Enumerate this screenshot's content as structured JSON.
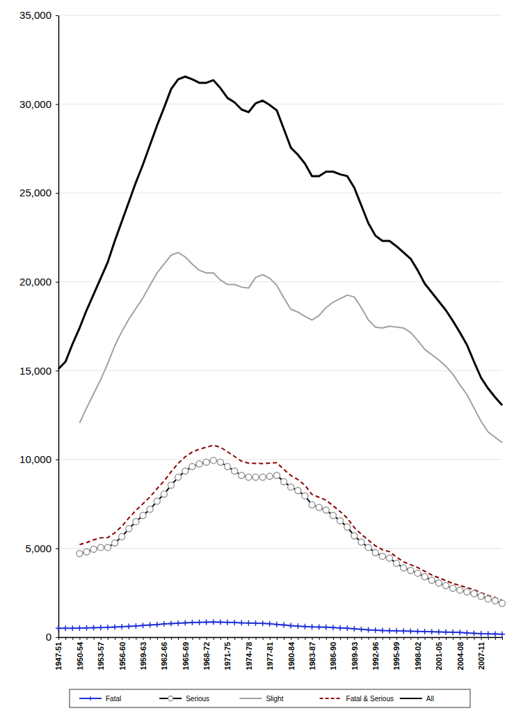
{
  "chart_data": {
    "type": "line",
    "categories": [
      "1947-51",
      null,
      null,
      "1950-54",
      null,
      null,
      "1953-57",
      null,
      null,
      "1956-60",
      null,
      null,
      "1959-63",
      null,
      null,
      "1962-66",
      null,
      null,
      "1965-69",
      null,
      null,
      "1968-72",
      null,
      null,
      "1971-75",
      null,
      null,
      "1974-78",
      null,
      null,
      "1977-81",
      null,
      null,
      "1980-84",
      null,
      null,
      "1983-87",
      null,
      null,
      "1986-90",
      null,
      null,
      "1989-93",
      null,
      null,
      "1992-96",
      null,
      null,
      "1995-99",
      null,
      null,
      "1998-02",
      null,
      null,
      "2001-05",
      null,
      null,
      "2004-08",
      null,
      null,
      "2007-11",
      null,
      null,
      null
    ],
    "series": [
      {
        "name": "Fatal",
        "color": "#1f2fd6",
        "marker": "plus",
        "line_style": "solid",
        "values": [
          500,
          500,
          500,
          510,
          520,
          530,
          540,
          550,
          570,
          590,
          610,
          630,
          660,
          690,
          710,
          740,
          760,
          780,
          800,
          820,
          830,
          840,
          850,
          840,
          830,
          820,
          800,
          790,
          780,
          770,
          750,
          720,
          690,
          650,
          620,
          600,
          580,
          570,
          560,
          540,
          520,
          500,
          470,
          440,
          410,
          390,
          370,
          360,
          350,
          340,
          330,
          320,
          310,
          300,
          290,
          280,
          270,
          260,
          240,
          220,
          200,
          190,
          180,
          170
        ]
      },
      {
        "name": "Serious",
        "color": "#000000",
        "marker": "circle",
        "line_style": "solid",
        "values": [
          null,
          null,
          null,
          4700,
          4800,
          4950,
          5050,
          5050,
          5300,
          5650,
          6100,
          6500,
          6850,
          7200,
          7650,
          8050,
          8550,
          9000,
          9350,
          9600,
          9750,
          9850,
          9950,
          9850,
          9600,
          9350,
          9100,
          9000,
          9000,
          9000,
          9050,
          9100,
          8750,
          8450,
          8250,
          7950,
          7450,
          7300,
          7150,
          6850,
          6550,
          6200,
          5700,
          5350,
          5050,
          4750,
          4550,
          4450,
          4150,
          3900,
          3750,
          3600,
          3400,
          3200,
          3050,
          2900,
          2750,
          2650,
          2550,
          2450,
          2300,
          2150,
          2050,
          1900
        ]
      },
      {
        "name": "Slight",
        "color": "#a0a0a0",
        "marker": "none",
        "line_style": "solid",
        "values": [
          null,
          null,
          null,
          12050,
          12900,
          13700,
          14500,
          15400,
          16400,
          17200,
          17900,
          18500,
          19100,
          19800,
          20500,
          21000,
          21500,
          21650,
          21400,
          21000,
          20650,
          20500,
          20500,
          20100,
          19850,
          19850,
          19700,
          19650,
          20250,
          20400,
          20200,
          19800,
          19100,
          18450,
          18300,
          18050,
          17850,
          18100,
          18550,
          18850,
          19050,
          19250,
          19150,
          18550,
          17850,
          17450,
          17400,
          17500,
          17450,
          17400,
          17150,
          16700,
          16200,
          15900,
          15600,
          15250,
          14800,
          14200,
          13650,
          12900,
          12150,
          11550,
          11250,
          10950
        ]
      },
      {
        "name": "Fatal & Serious",
        "color": "#8b0000",
        "marker": "none",
        "line_style": "dashed",
        "values": [
          null,
          null,
          null,
          5210,
          5320,
          5480,
          5590,
          5600,
          5870,
          6240,
          6710,
          7130,
          7510,
          7890,
          8360,
          8790,
          9310,
          9780,
          10150,
          10420,
          10580,
          10690,
          10800,
          10690,
          10430,
          10170,
          9900,
          9790,
          9780,
          9770,
          9800,
          9820,
          9440,
          9100,
          8870,
          8550,
          8030,
          7870,
          7710,
          7390,
          7070,
          6700,
          6170,
          5790,
          5460,
          5140,
          4920,
          4810,
          4500,
          4240,
          4080,
          3920,
          3710,
          3500,
          3340,
          3180,
          3020,
          2910,
          2790,
          2670,
          2500,
          2340,
          2230,
          2070
        ]
      },
      {
        "name": "All",
        "color": "#000000",
        "marker": "none",
        "line_style": "solid",
        "values": [
          15100,
          15500,
          16500,
          17400,
          18400,
          19300,
          20200,
          21100,
          22300,
          23400,
          24500,
          25600,
          26600,
          27700,
          28800,
          29800,
          30850,
          31400,
          31550,
          31400,
          31200,
          31200,
          31350,
          30900,
          30350,
          30100,
          29700,
          29550,
          30050,
          30200,
          29950,
          29650,
          28600,
          27550,
          27150,
          26650,
          25950,
          25950,
          26200,
          26200,
          26050,
          25950,
          25300,
          24300,
          23300,
          22600,
          22300,
          22300,
          22000,
          21650,
          21300,
          20650,
          19900,
          19400,
          18900,
          18400,
          17800,
          17150,
          16450,
          15500,
          14600,
          14000,
          13500,
          13050
        ]
      }
    ],
    "ylim": [
      0,
      35000
    ],
    "yticks": [
      0,
      {
        "value": 5000,
        "label": "5,000"
      },
      {
        "value": 10000,
        "label": "10,000"
      },
      {
        "value": 15000,
        "label": "15,000"
      },
      {
        "value": 20000,
        "label": "20,000"
      },
      {
        "value": 25000,
        "label": "25,000"
      },
      {
        "value": 30000,
        "label": "30,000"
      },
      {
        "value": 35000,
        "label": "35,000"
      }
    ],
    "grid": true,
    "legend": "bottom"
  }
}
